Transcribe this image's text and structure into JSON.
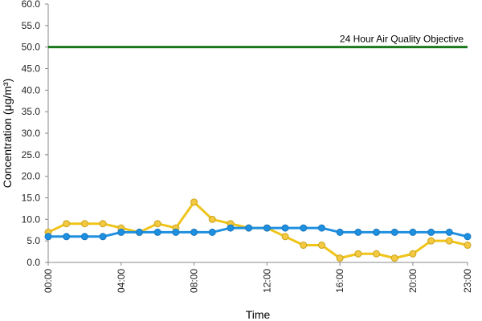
{
  "chart_data": {
    "type": "line",
    "title": "",
    "xlabel": "Time",
    "ylabel": "Concentration (μg/m³)",
    "ylim": [
      0,
      60
    ],
    "y_ticks": [
      "0.0",
      "5.0",
      "10.0",
      "15.0",
      "20.0",
      "25.0",
      "30.0",
      "35.0",
      "40.0",
      "45.0",
      "50.0",
      "55.0",
      "60.0"
    ],
    "x_tick_labels": [
      "00:00",
      "04:00",
      "08:00",
      "12:00",
      "16:00",
      "20:00",
      "23:00"
    ],
    "x_tick_hours": [
      0,
      4,
      8,
      12,
      16,
      20,
      23
    ],
    "x": [
      "00:00",
      "01:00",
      "02:00",
      "03:00",
      "04:00",
      "05:00",
      "06:00",
      "07:00",
      "08:00",
      "09:00",
      "10:00",
      "11:00",
      "12:00",
      "13:00",
      "14:00",
      "15:00",
      "16:00",
      "17:00",
      "18:00",
      "19:00",
      "20:00",
      "21:00",
      "22:00",
      "23:00"
    ],
    "grid": false,
    "series": [
      {
        "color": "#f0c419",
        "marker_color": "#f5c842",
        "values": [
          7,
          9,
          9,
          9,
          8,
          7,
          9,
          8,
          14,
          10,
          9,
          8,
          8,
          6,
          4,
          4,
          1,
          2,
          2,
          1,
          2,
          5,
          5,
          4
        ]
      },
      {
        "color": "#1e90e0",
        "marker_color": "#1e90e0",
        "values": [
          6,
          6,
          6,
          6,
          7,
          7,
          7,
          7,
          7,
          7,
          8,
          8,
          8,
          8,
          8,
          8,
          7,
          7,
          7,
          7,
          7,
          7,
          7,
          6
        ]
      }
    ],
    "reference_line": {
      "label": "24 Hour Air Quality Objective",
      "value": 50,
      "color": "#1a7a1a"
    }
  }
}
